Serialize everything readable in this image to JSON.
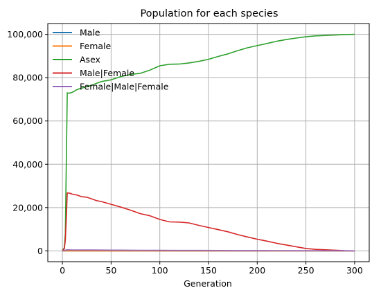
{
  "chart_data": {
    "type": "line",
    "title": "Population for each species",
    "xlabel": "Generation",
    "ylabel": "",
    "xlim": [
      -15,
      315
    ],
    "ylim": [
      -5000,
      105000
    ],
    "x_ticks": [
      0,
      50,
      100,
      150,
      200,
      250,
      300
    ],
    "y_ticks": [
      0,
      20000,
      40000,
      60000,
      80000,
      100000
    ],
    "y_tick_labels": [
      "0",
      "20,000",
      "40,000",
      "60,000",
      "80,000",
      "100,000"
    ],
    "grid": true,
    "legend_position": "upper-left",
    "series": [
      {
        "name": "Male",
        "color": "#1f77b4",
        "points": [
          [
            0,
            0
          ],
          [
            300,
            0
          ]
        ]
      },
      {
        "name": "Female",
        "color": "#ff7f0e",
        "points": [
          [
            0,
            0
          ],
          [
            300,
            0
          ]
        ]
      },
      {
        "name": "Asex",
        "color": "#2ca02c",
        "points": [
          [
            0,
            200
          ],
          [
            2,
            1500
          ],
          [
            3,
            8000
          ],
          [
            4,
            40000
          ],
          [
            5,
            73000
          ],
          [
            7,
            72800
          ],
          [
            10,
            73200
          ],
          [
            15,
            74500
          ],
          [
            20,
            75200
          ],
          [
            30,
            76500
          ],
          [
            40,
            78200
          ],
          [
            50,
            79000
          ],
          [
            60,
            80500
          ],
          [
            70,
            81500
          ],
          [
            80,
            82000
          ],
          [
            90,
            83500
          ],
          [
            100,
            85500
          ],
          [
            110,
            86200
          ],
          [
            120,
            86300
          ],
          [
            130,
            86800
          ],
          [
            140,
            87500
          ],
          [
            150,
            88500
          ],
          [
            160,
            89800
          ],
          [
            170,
            91000
          ],
          [
            180,
            92500
          ],
          [
            190,
            93800
          ],
          [
            200,
            94800
          ],
          [
            210,
            95800
          ],
          [
            220,
            96800
          ],
          [
            230,
            97600
          ],
          [
            240,
            98300
          ],
          [
            250,
            98900
          ],
          [
            260,
            99300
          ],
          [
            270,
            99500
          ],
          [
            280,
            99700
          ],
          [
            290,
            99900
          ],
          [
            300,
            100000
          ]
        ]
      },
      {
        "name": "Male|Female",
        "color": "#d62728",
        "points": [
          [
            0,
            100
          ],
          [
            2,
            1000
          ],
          [
            3,
            5000
          ],
          [
            4,
            15000
          ],
          [
            5,
            26800
          ],
          [
            7,
            26700
          ],
          [
            10,
            26200
          ],
          [
            15,
            25800
          ],
          [
            20,
            25000
          ],
          [
            25,
            24800
          ],
          [
            30,
            24000
          ],
          [
            35,
            23200
          ],
          [
            40,
            22800
          ],
          [
            50,
            21500
          ],
          [
            60,
            20200
          ],
          [
            70,
            18800
          ],
          [
            80,
            17200
          ],
          [
            90,
            16200
          ],
          [
            100,
            14500
          ],
          [
            110,
            13400
          ],
          [
            120,
            13300
          ],
          [
            130,
            12900
          ],
          [
            140,
            11800
          ],
          [
            150,
            10800
          ],
          [
            160,
            9800
          ],
          [
            170,
            8800
          ],
          [
            180,
            7500
          ],
          [
            190,
            6400
          ],
          [
            200,
            5400
          ],
          [
            210,
            4500
          ],
          [
            220,
            3500
          ],
          [
            230,
            2700
          ],
          [
            240,
            1900
          ],
          [
            250,
            1100
          ],
          [
            260,
            700
          ],
          [
            270,
            500
          ],
          [
            280,
            300
          ],
          [
            290,
            100
          ],
          [
            300,
            0
          ]
        ]
      },
      {
        "name": "Female|Male|Female",
        "color": "#9467bd",
        "points": [
          [
            0,
            100
          ],
          [
            5,
            500
          ],
          [
            10,
            450
          ],
          [
            20,
            420
          ],
          [
            30,
            400
          ],
          [
            40,
            380
          ],
          [
            50,
            350
          ],
          [
            60,
            330
          ],
          [
            70,
            300
          ],
          [
            80,
            280
          ],
          [
            90,
            260
          ],
          [
            100,
            240
          ],
          [
            120,
            220
          ],
          [
            140,
            200
          ],
          [
            160,
            180
          ],
          [
            180,
            160
          ],
          [
            200,
            140
          ],
          [
            220,
            120
          ],
          [
            240,
            100
          ],
          [
            260,
            80
          ],
          [
            280,
            50
          ],
          [
            300,
            20
          ]
        ]
      }
    ]
  }
}
